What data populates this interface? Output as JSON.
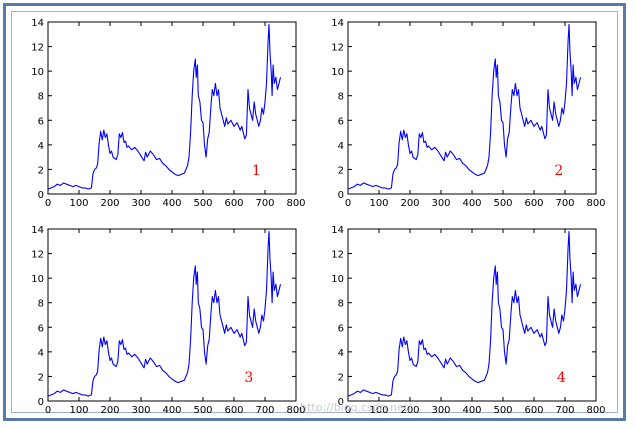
{
  "chart_data": {
    "type": "line",
    "xlim": [
      0,
      800
    ],
    "ylim": [
      0,
      14
    ],
    "xticks": [
      0,
      100,
      200,
      300,
      400,
      500,
      600,
      700,
      800
    ],
    "yticks": [
      0,
      2,
      4,
      6,
      8,
      10,
      12,
      14
    ],
    "grid": false,
    "line_color": "#0000ff",
    "label_color": "#ff0000",
    "series_points": [
      [
        0,
        0.4
      ],
      [
        10,
        0.5
      ],
      [
        20,
        0.6
      ],
      [
        30,
        0.8
      ],
      [
        40,
        0.7
      ],
      [
        50,
        0.9
      ],
      [
        60,
        0.8
      ],
      [
        70,
        0.7
      ],
      [
        80,
        0.6
      ],
      [
        90,
        0.7
      ],
      [
        100,
        0.6
      ],
      [
        110,
        0.5
      ],
      [
        120,
        0.5
      ],
      [
        130,
        0.4
      ],
      [
        140,
        0.5
      ],
      [
        145,
        1.6
      ],
      [
        150,
        2.0
      ],
      [
        155,
        2.1
      ],
      [
        160,
        2.4
      ],
      [
        165,
        4.2
      ],
      [
        170,
        5.1
      ],
      [
        175,
        4.4
      ],
      [
        180,
        5.2
      ],
      [
        185,
        4.6
      ],
      [
        190,
        4.9
      ],
      [
        195,
        4.0
      ],
      [
        200,
        3.3
      ],
      [
        205,
        3.5
      ],
      [
        210,
        3.0
      ],
      [
        215,
        2.9
      ],
      [
        220,
        2.8
      ],
      [
        225,
        3.2
      ],
      [
        230,
        4.9
      ],
      [
        235,
        4.6
      ],
      [
        240,
        5.0
      ],
      [
        245,
        4.2
      ],
      [
        250,
        4.3
      ],
      [
        255,
        3.8
      ],
      [
        260,
        3.9
      ],
      [
        270,
        3.6
      ],
      [
        280,
        3.8
      ],
      [
        290,
        3.5
      ],
      [
        300,
        3.1
      ],
      [
        310,
        2.7
      ],
      [
        315,
        3.4
      ],
      [
        320,
        3.0
      ],
      [
        330,
        3.5
      ],
      [
        340,
        3.2
      ],
      [
        350,
        2.8
      ],
      [
        360,
        2.9
      ],
      [
        370,
        2.5
      ],
      [
        380,
        2.3
      ],
      [
        390,
        2.0
      ],
      [
        400,
        1.8
      ],
      [
        410,
        1.6
      ],
      [
        420,
        1.5
      ],
      [
        430,
        1.6
      ],
      [
        440,
        1.7
      ],
      [
        450,
        2.3
      ],
      [
        455,
        3.0
      ],
      [
        460,
        5.0
      ],
      [
        465,
        8.0
      ],
      [
        470,
        10.0
      ],
      [
        475,
        11.0
      ],
      [
        478,
        9.5
      ],
      [
        482,
        10.5
      ],
      [
        485,
        8.0
      ],
      [
        490,
        7.5
      ],
      [
        495,
        6.0
      ],
      [
        500,
        5.8
      ],
      [
        505,
        4.0
      ],
      [
        510,
        3.0
      ],
      [
        515,
        4.5
      ],
      [
        520,
        5.0
      ],
      [
        525,
        7.0
      ],
      [
        530,
        8.5
      ],
      [
        535,
        8.0
      ],
      [
        540,
        9.0
      ],
      [
        545,
        8.0
      ],
      [
        550,
        8.5
      ],
      [
        555,
        7.0
      ],
      [
        560,
        6.5
      ],
      [
        565,
        6.0
      ],
      [
        570,
        5.5
      ],
      [
        575,
        6.2
      ],
      [
        580,
        5.7
      ],
      [
        590,
        6.0
      ],
      [
        600,
        5.5
      ],
      [
        610,
        5.8
      ],
      [
        620,
        5.2
      ],
      [
        625,
        5.5
      ],
      [
        630,
        5.0
      ],
      [
        635,
        4.5
      ],
      [
        640,
        4.8
      ],
      [
        645,
        8.5
      ],
      [
        650,
        7.0
      ],
      [
        655,
        6.5
      ],
      [
        660,
        6.0
      ],
      [
        665,
        7.5
      ],
      [
        670,
        6.5
      ],
      [
        675,
        6.0
      ],
      [
        680,
        5.5
      ],
      [
        685,
        6.0
      ],
      [
        690,
        7.0
      ],
      [
        695,
        6.5
      ],
      [
        700,
        7.5
      ],
      [
        705,
        9.0
      ],
      [
        710,
        12.5
      ],
      [
        713,
        13.8
      ],
      [
        716,
        11.5
      ],
      [
        720,
        10.0
      ],
      [
        723,
        8.0
      ],
      [
        726,
        10.5
      ],
      [
        730,
        9.0
      ],
      [
        735,
        9.5
      ],
      [
        740,
        8.5
      ],
      [
        745,
        9.0
      ],
      [
        750,
        9.5
      ]
    ],
    "panels": [
      {
        "label": "1"
      },
      {
        "label": "2"
      },
      {
        "label": "3"
      },
      {
        "label": "4"
      }
    ]
  },
  "watermark": "http://blog.csdn.net/..."
}
